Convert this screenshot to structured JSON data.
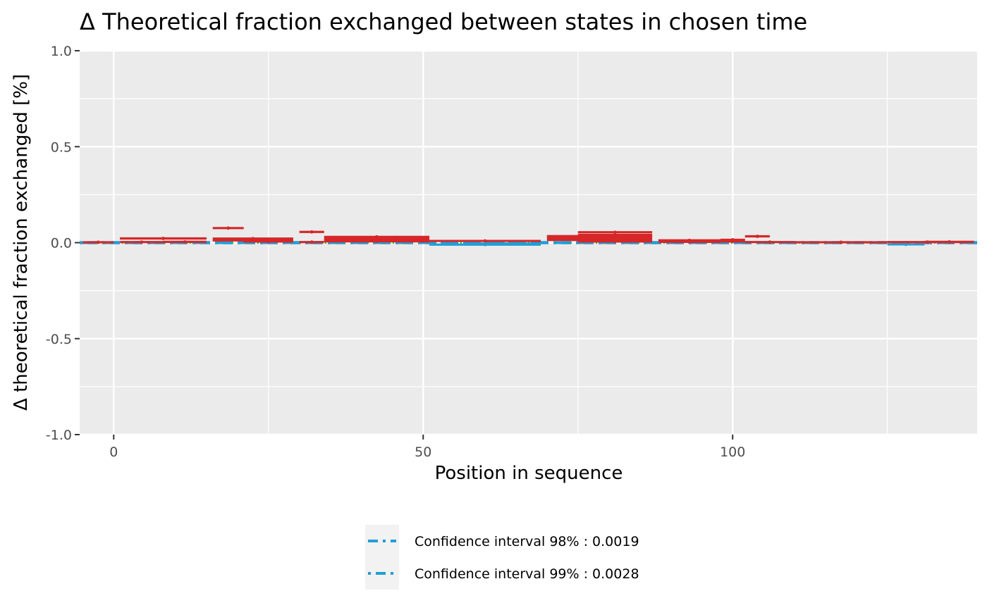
{
  "chart_data": {
    "type": "scatter",
    "title": "Δ Theoretical fraction exchanged between states in chosen time",
    "xlabel": "Position in sequence",
    "ylabel": "Δ theoretical fraction exchanged [%]",
    "xlim": [
      -5.5,
      139.5
    ],
    "ylim": [
      -1.0,
      1.0
    ],
    "x_ticks": [
      0,
      50,
      100
    ],
    "x_tick_labels": [
      "0",
      "50",
      "100"
    ],
    "y_ticks": [
      -1.0,
      -0.5,
      0.0,
      0.5,
      1.0
    ],
    "y_tick_labels": [
      "-1.0",
      "-0.5",
      "0.0",
      "0.5",
      "1.0"
    ],
    "grid": true,
    "legend_position": "bottom",
    "confidence_intervals": [
      {
        "label": "Confidence interval 98% : 0.0019",
        "value": 0.0019,
        "color": "#1f9fd6",
        "dash": "dashed"
      },
      {
        "label": "Confidence interval 99% : 0.0028",
        "value": 0.0028,
        "color": "#1f9fd6",
        "dash": "dotdash"
      }
    ],
    "peptide_color": "#d62728",
    "negative_color": "#1f9fd6",
    "zero_line_color": "#00e000",
    "peptides": [
      {
        "start": -5,
        "end": 0,
        "value": 0.002
      },
      {
        "start": 1,
        "end": 15,
        "value": 0.022
      },
      {
        "start": 1,
        "end": 8,
        "value": 0.003
      },
      {
        "start": 8,
        "end": 15,
        "value": 0.004
      },
      {
        "start": 16,
        "end": 29,
        "value": 0.021
      },
      {
        "start": 16,
        "end": 29,
        "value": 0.012
      },
      {
        "start": 16,
        "end": 21,
        "value": 0.076
      },
      {
        "start": 21,
        "end": 29,
        "value": 0.006
      },
      {
        "start": 30,
        "end": 34,
        "value": 0.056
      },
      {
        "start": 30,
        "end": 34,
        "value": 0.003
      },
      {
        "start": 34,
        "end": 51,
        "value": 0.03
      },
      {
        "start": 34,
        "end": 51,
        "value": 0.022
      },
      {
        "start": 34,
        "end": 51,
        "value": 0.014
      },
      {
        "start": 34,
        "end": 51,
        "value": 0.007
      },
      {
        "start": 40,
        "end": 51,
        "value": 0.027
      },
      {
        "start": 51,
        "end": 69,
        "value": 0.009
      },
      {
        "start": 51,
        "end": 69,
        "value": -0.01
      },
      {
        "start": 57,
        "end": 69,
        "value": -0.005
      },
      {
        "start": 70,
        "end": 87,
        "value": 0.034
      },
      {
        "start": 70,
        "end": 87,
        "value": 0.024
      },
      {
        "start": 70,
        "end": 87,
        "value": 0.014
      },
      {
        "start": 75,
        "end": 87,
        "value": 0.054
      },
      {
        "start": 75,
        "end": 87,
        "value": 0.04
      },
      {
        "start": 75,
        "end": 87,
        "value": 0.006
      },
      {
        "start": 88,
        "end": 98,
        "value": 0.012
      },
      {
        "start": 88,
        "end": 98,
        "value": 0.004
      },
      {
        "start": 98,
        "end": 102,
        "value": 0.015
      },
      {
        "start": 98,
        "end": 102,
        "value": 0.006
      },
      {
        "start": 102,
        "end": 106,
        "value": 0.033
      },
      {
        "start": 102,
        "end": 110,
        "value": 0.003
      },
      {
        "start": 110,
        "end": 125,
        "value": 0.002
      },
      {
        "start": 125,
        "end": 131,
        "value": -0.009
      },
      {
        "start": 125,
        "end": 138,
        "value": 0.003
      },
      {
        "start": 131,
        "end": 139,
        "value": 0.004
      }
    ]
  }
}
